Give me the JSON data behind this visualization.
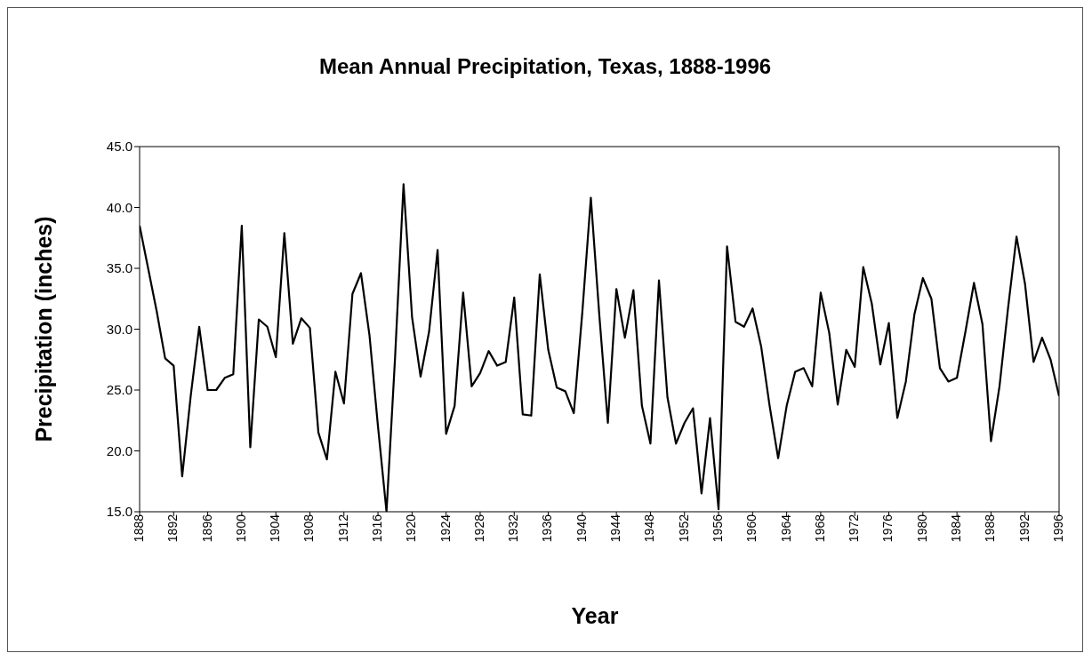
{
  "chart_data": {
    "type": "line",
    "title": "Mean Annual Precipitation, Texas, 1888-1996",
    "xlabel": "Year",
    "ylabel": "Precipitation (inches)",
    "x": [
      1888,
      1889,
      1890,
      1891,
      1892,
      1893,
      1894,
      1895,
      1896,
      1897,
      1898,
      1899,
      1900,
      1901,
      1902,
      1903,
      1904,
      1905,
      1906,
      1907,
      1908,
      1909,
      1910,
      1911,
      1912,
      1913,
      1914,
      1915,
      1916,
      1917,
      1918,
      1919,
      1920,
      1921,
      1922,
      1923,
      1924,
      1925,
      1926,
      1927,
      1928,
      1929,
      1930,
      1931,
      1932,
      1933,
      1934,
      1935,
      1936,
      1937,
      1938,
      1939,
      1940,
      1941,
      1942,
      1943,
      1944,
      1945,
      1946,
      1947,
      1948,
      1949,
      1950,
      1951,
      1952,
      1953,
      1954,
      1955,
      1956,
      1957,
      1958,
      1959,
      1960,
      1961,
      1962,
      1963,
      1964,
      1965,
      1966,
      1967,
      1968,
      1969,
      1970,
      1971,
      1972,
      1973,
      1974,
      1975,
      1976,
      1977,
      1978,
      1979,
      1980,
      1981,
      1982,
      1983,
      1984,
      1985,
      1986,
      1987,
      1988,
      1989,
      1990,
      1991,
      1992,
      1993,
      1994,
      1995,
      1996
    ],
    "series": [
      {
        "color": "#000000",
        "values": [
          38.5,
          35.0,
          31.5,
          27.6,
          27.0,
          17.9,
          24.5,
          30.2,
          25.0,
          25.0,
          26.0,
          26.3,
          38.5,
          20.3,
          30.8,
          30.2,
          27.7,
          37.9,
          28.8,
          30.9,
          30.1,
          21.5,
          19.3,
          26.5,
          23.9,
          32.9,
          34.6,
          29.5,
          22.0,
          15.0,
          27.6,
          41.9,
          31.0,
          26.1,
          29.8,
          36.5,
          21.4,
          23.7,
          33.0,
          25.3,
          26.4,
          28.2,
          27.0,
          27.3,
          32.6,
          23.0,
          22.9,
          34.5,
          28.3,
          25.2,
          24.9,
          23.1,
          31.4,
          40.8,
          31.1,
          22.3,
          33.3,
          29.3,
          33.2,
          23.7,
          20.6,
          34.0,
          24.4,
          20.6,
          22.3,
          23.5,
          16.5,
          22.7,
          15.2,
          36.8,
          30.6,
          30.2,
          31.7,
          28.6,
          23.7,
          19.4,
          23.7,
          26.5,
          26.8,
          25.3,
          33.0,
          29.7,
          23.8,
          28.3,
          26.9,
          35.1,
          32.1,
          27.1,
          30.5,
          22.7,
          25.7,
          31.2,
          34.2,
          32.5,
          26.8,
          25.7,
          26.0,
          29.8,
          33.8,
          30.4,
          20.8,
          25.3,
          31.7,
          37.6,
          33.7,
          27.3,
          29.3,
          27.5,
          24.5
        ]
      }
    ],
    "xlim": [
      1888,
      1996
    ],
    "xticks": [
      1888,
      1892,
      1896,
      1900,
      1904,
      1908,
      1912,
      1916,
      1920,
      1924,
      1928,
      1932,
      1936,
      1940,
      1944,
      1948,
      1952,
      1956,
      1960,
      1964,
      1968,
      1972,
      1976,
      1980,
      1984,
      1988,
      1992,
      1996
    ],
    "ylim": [
      15,
      45
    ],
    "yticks": [
      {
        "value": 15,
        "label": "15.0"
      },
      {
        "value": 20,
        "label": "20.0"
      },
      {
        "value": 25,
        "label": "25.0"
      },
      {
        "value": 30,
        "label": "30.0"
      },
      {
        "value": 35,
        "label": "35.0"
      },
      {
        "value": 40,
        "label": "40.0"
      },
      {
        "value": 45,
        "label": "45.0"
      }
    ],
    "grid": false,
    "marker": "none",
    "line_style": "solid"
  }
}
